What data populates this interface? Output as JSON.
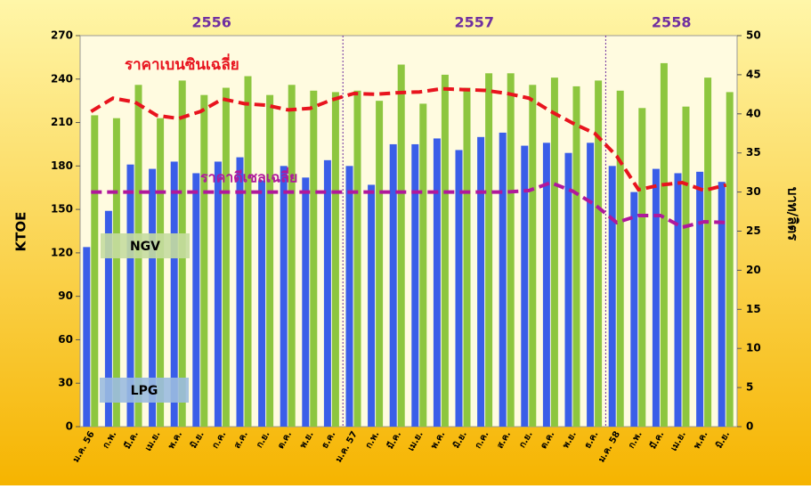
{
  "chart_data": {
    "type": "bar",
    "ylabel": "KTOE",
    "y2label": "บาท/ลิตร",
    "annotations": [
      "2556",
      "2557",
      "2558"
    ],
    "categories": [
      "ม.ค. 56",
      "ก.พ.",
      "มี.ค.",
      "เม.ย.",
      "พ.ค.",
      "มิ.ย.",
      "ก.ค.",
      "ส.ค.",
      "ก.ย.",
      "ต.ค.",
      "พ.ย.",
      "ธ.ค.",
      "ม.ค. 57",
      "ก.พ.",
      "มี.ค.",
      "เม.ย.",
      "พ.ค.",
      "มิ.ย.",
      "ก.ค.",
      "ส.ค.",
      "ก.ย.",
      "ต.ค.",
      "พ.ย.",
      "ธ.ค.",
      "ม.ค. 58",
      "ก.พ.",
      "มี.ค.",
      "เม.ย.",
      "พ.ค.",
      "มิ.ย."
    ],
    "series": [
      {
        "name": "LPG",
        "color": "#3a5ee8",
        "values": [
          124,
          149,
          181,
          178,
          183,
          175,
          183,
          186,
          170,
          180,
          172,
          184,
          180,
          167,
          195,
          195,
          199,
          191,
          200,
          203,
          194,
          196,
          189,
          196,
          180,
          162,
          178,
          175,
          176,
          169
        ]
      },
      {
        "name": "NGV",
        "color": "#8dc63f",
        "values": [
          215,
          213,
          236,
          213,
          239,
          229,
          234,
          242,
          229,
          236,
          232,
          231,
          232,
          225,
          250,
          223,
          243,
          234,
          244,
          244,
          236,
          241,
          235,
          239,
          232,
          220,
          251,
          221,
          241,
          231
        ]
      },
      {
        "name": "ราคาเบนซินเฉลี่ย",
        "color": "#e8141e",
        "axis": "y2",
        "type": "line",
        "values": [
          40.3,
          42,
          41.5,
          39.8,
          39.4,
          40.3,
          41.9,
          41.3,
          41.1,
          40.5,
          40.7,
          41.8,
          42.6,
          42.5,
          42.7,
          42.8,
          43.2,
          43.1,
          43,
          42.6,
          42,
          40.3,
          38.8,
          37.5,
          34.6,
          30.3,
          30.9,
          31.2,
          30.2,
          30.9
        ]
      },
      {
        "name": "ราคาดีเซลเฉลี่ย",
        "color": "#b0189c",
        "axis": "y2",
        "type": "line",
        "values": [
          30,
          30,
          30,
          30,
          30,
          30,
          30,
          30,
          30,
          30,
          30,
          30,
          30,
          30,
          30,
          30,
          30,
          30,
          30,
          30,
          30.2,
          31.2,
          30.1,
          28.4,
          26.1,
          27,
          27,
          25.5,
          26.2,
          26.1
        ]
      }
    ],
    "ylim": [
      0,
      270
    ],
    "yticks": [
      0,
      30,
      60,
      90,
      120,
      150,
      180,
      210,
      240,
      270
    ],
    "y2lim": [
      0,
      50
    ],
    "y2ticks": [
      0,
      5,
      10,
      15,
      20,
      25,
      30,
      35,
      40,
      45,
      50
    ]
  }
}
